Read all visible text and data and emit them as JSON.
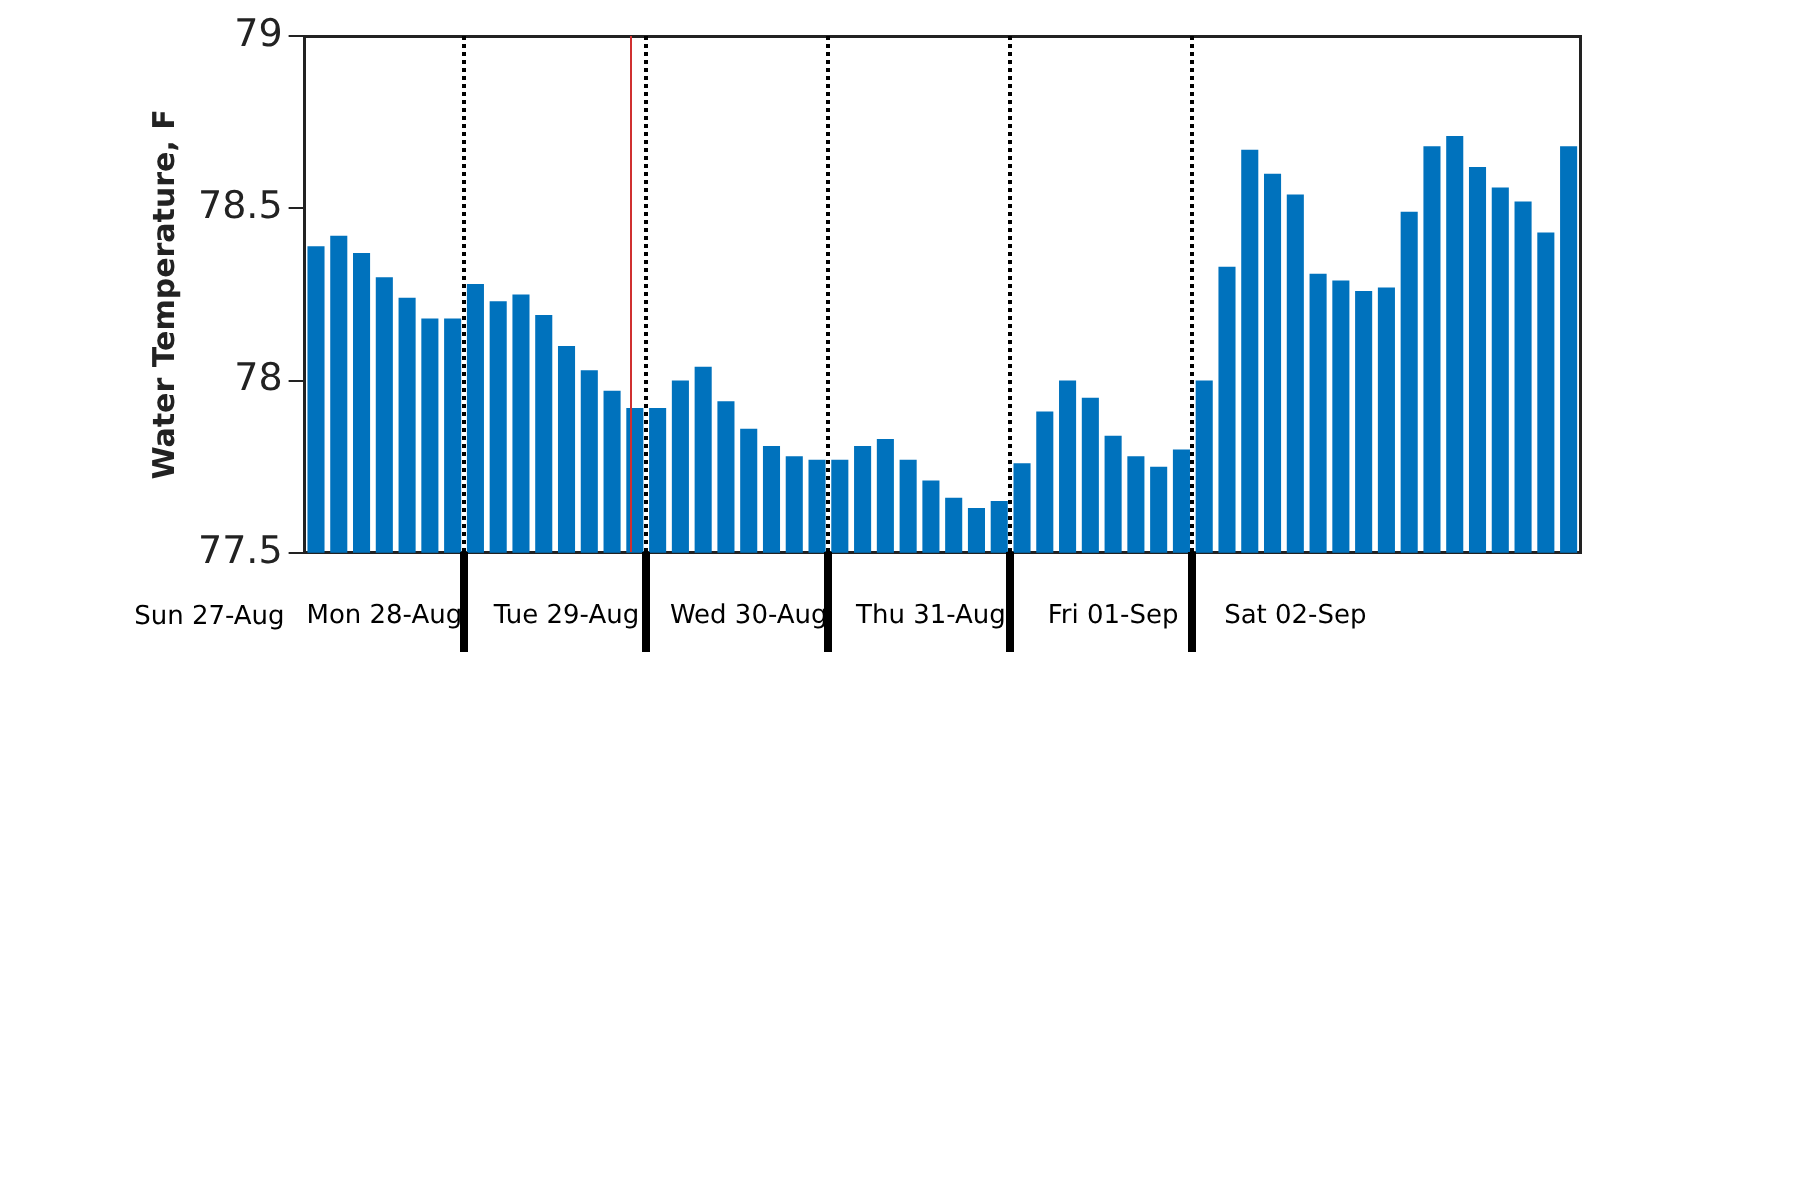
{
  "chart_data": {
    "type": "bar",
    "ylabel": "Water Temperature, F",
    "categories": [
      null,
      null,
      null,
      "Mon 28-Aug",
      null,
      null,
      null,
      null,
      null,
      null,
      null,
      "Tue 29-Aug",
      null,
      null,
      null,
      null,
      null,
      null,
      null,
      "Wed 30-Aug",
      null,
      null,
      null,
      null,
      null,
      null,
      null,
      "Thu 31-Aug",
      null,
      null,
      null,
      null,
      null,
      null,
      null,
      "Fri 01-Sep",
      null,
      null,
      null,
      null,
      null,
      null,
      null,
      "Sat 02-Sep",
      null,
      null,
      null,
      null,
      null,
      null,
      null,
      null,
      null,
      null,
      null,
      null
    ],
    "values": [
      78.39,
      78.42,
      78.37,
      78.3,
      78.24,
      78.18,
      78.18,
      78.28,
      78.23,
      78.25,
      78.19,
      78.1,
      78.03,
      77.97,
      77.92,
      77.92,
      78.0,
      78.04,
      77.94,
      77.86,
      77.81,
      77.78,
      77.77,
      77.77,
      77.81,
      77.83,
      77.77,
      77.71,
      77.66,
      77.63,
      77.65,
      77.76,
      77.91,
      78.0,
      77.95,
      77.84,
      77.78,
      77.75,
      77.8,
      78.0,
      78.33,
      78.67,
      78.6,
      78.54,
      78.31,
      78.29,
      78.26,
      78.27,
      78.49,
      78.68,
      78.71,
      78.62,
      78.56,
      78.52,
      78.43,
      78.68
    ],
    "color": "#0072bd",
    "ylim": [
      77.5,
      79
    ],
    "yticks": [
      77.5,
      78,
      78.5,
      79
    ],
    "annotations": [
      "Sun 27-Aug"
    ]
  }
}
